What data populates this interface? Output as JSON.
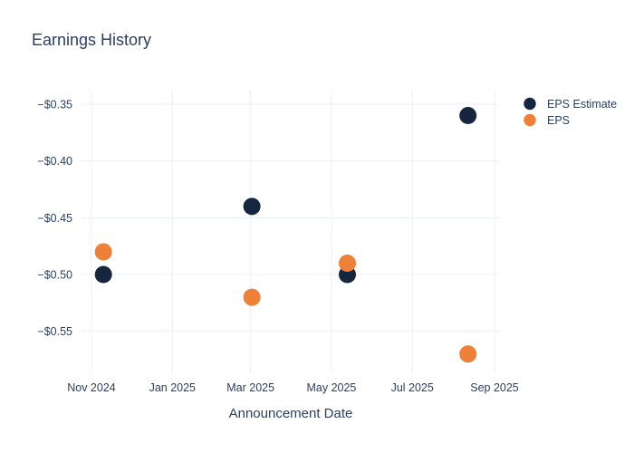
{
  "colors": {
    "background": "#ffffff",
    "text": "#2a3f5f",
    "grid": "#eaf0f8",
    "eps_estimate": "#16263f",
    "eps": "#ef8038"
  },
  "chart_data": {
    "type": "scatter",
    "title": "Earnings History",
    "xlabel": "Announcement Date",
    "ylabel": "",
    "grid": true,
    "legend_position": "top-right",
    "x_ticks": [
      {
        "date": "2024-11-01",
        "label": "Nov 2024"
      },
      {
        "date": "2025-01-01",
        "label": "Jan 2025"
      },
      {
        "date": "2025-03-01",
        "label": "Mar 2025"
      },
      {
        "date": "2025-05-01",
        "label": "May 2025"
      },
      {
        "date": "2025-07-01",
        "label": "Jul 2025"
      },
      {
        "date": "2025-09-01",
        "label": "Sep 2025"
      }
    ],
    "y_ticks": [
      {
        "value": -0.35,
        "label": "−$0.35"
      },
      {
        "value": -0.4,
        "label": "−$0.40"
      },
      {
        "value": -0.45,
        "label": "−$0.45"
      },
      {
        "value": -0.5,
        "label": "−$0.50"
      },
      {
        "value": -0.55,
        "label": "−$0.55"
      }
    ],
    "ylim": [
      -0.587,
      -0.338
    ],
    "xlim": [
      "2024-10-24",
      "2025-09-05"
    ],
    "series": [
      {
        "name": "EPS Estimate",
        "color": "#16263f",
        "marker": "circle",
        "points": [
          {
            "date": "2024-11-10",
            "value": -0.5
          },
          {
            "date": "2025-03-02",
            "value": -0.44
          },
          {
            "date": "2025-05-13",
            "value": -0.5
          },
          {
            "date": "2025-08-12",
            "value": -0.36
          }
        ]
      },
      {
        "name": "EPS",
        "color": "#ef8038",
        "marker": "circle",
        "points": [
          {
            "date": "2024-11-10",
            "value": -0.48
          },
          {
            "date": "2025-03-02",
            "value": -0.52
          },
          {
            "date": "2025-05-13",
            "value": -0.49
          },
          {
            "date": "2025-08-12",
            "value": -0.57
          }
        ]
      }
    ]
  }
}
